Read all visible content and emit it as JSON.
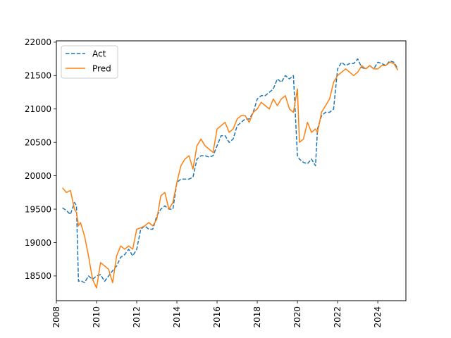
{
  "chart_data": {
    "type": "line",
    "title": "",
    "xlabel": "",
    "ylabel": "",
    "xlim": [
      2008,
      2025.4
    ],
    "ylim": [
      18130,
      22020
    ],
    "grid": false,
    "legend_placement": "top-left",
    "x_ticks": [
      2008,
      2010,
      2012,
      2014,
      2016,
      2018,
      2020,
      2022,
      2024
    ],
    "x_tick_labels": [
      "2008",
      "2010",
      "2012",
      "2014",
      "2016",
      "2018",
      "2020",
      "2022",
      "2024"
    ],
    "y_ticks": [
      18500,
      19000,
      19500,
      20000,
      20500,
      21000,
      21500,
      22000
    ],
    "y_tick_labels": [
      "18500",
      "19000",
      "19500",
      "20000",
      "20500",
      "21000",
      "21500",
      "22000"
    ],
    "series": [
      {
        "name": "Act",
        "color": "#1f77b4",
        "style": "dashed",
        "x": [
          2008.3,
          2008.5,
          2008.7,
          2008.9,
          2009.0,
          2009.1,
          2009.2,
          2009.4,
          2009.6,
          2009.8,
          2010.0,
          2010.2,
          2010.4,
          2010.6,
          2010.8,
          2011.0,
          2011.2,
          2011.4,
          2011.6,
          2011.8,
          2012.0,
          2012.2,
          2012.4,
          2012.6,
          2012.8,
          2013.0,
          2013.2,
          2013.4,
          2013.6,
          2013.8,
          2014.0,
          2014.2,
          2014.4,
          2014.6,
          2014.8,
          2015.0,
          2015.2,
          2015.4,
          2015.6,
          2015.8,
          2016.0,
          2016.2,
          2016.4,
          2016.6,
          2016.8,
          2017.0,
          2017.2,
          2017.4,
          2017.6,
          2017.8,
          2018.0,
          2018.2,
          2018.4,
          2018.6,
          2018.8,
          2019.0,
          2019.2,
          2019.4,
          2019.6,
          2019.8,
          2020.0,
          2020.1,
          2020.3,
          2020.5,
          2020.7,
          2020.9,
          2021.0,
          2021.2,
          2021.4,
          2021.6,
          2021.8,
          2022.0,
          2022.2,
          2022.4,
          2022.6,
          2022.8,
          2023.0,
          2023.2,
          2023.4,
          2023.6,
          2023.8,
          2024.0,
          2024.2,
          2024.4,
          2024.6,
          2024.8,
          2025.0
        ],
        "values": [
          19520,
          19480,
          19420,
          19600,
          19550,
          18420,
          18430,
          18400,
          18500,
          18450,
          18500,
          18520,
          18420,
          18500,
          18580,
          18650,
          18780,
          18820,
          18900,
          18800,
          18900,
          19200,
          19250,
          19200,
          19200,
          19400,
          19500,
          19550,
          19500,
          19500,
          19900,
          19950,
          19950,
          19950,
          19980,
          20250,
          20300,
          20300,
          20280,
          20300,
          20450,
          20600,
          20600,
          20500,
          20550,
          20750,
          20800,
          20850,
          20850,
          20950,
          21150,
          21200,
          21200,
          21250,
          21300,
          21450,
          21400,
          21500,
          21450,
          21500,
          20300,
          20250,
          20200,
          20180,
          20250,
          20150,
          20700,
          20900,
          20950,
          20950,
          21000,
          21600,
          21700,
          21650,
          21680,
          21680,
          21750,
          21620,
          21600,
          21650,
          21600,
          21700,
          21680,
          21650,
          21720,
          21700,
          21600
        ]
      },
      {
        "name": "Pred",
        "color": "#ff7f0e",
        "style": "solid",
        "x": [
          2008.3,
          2008.5,
          2008.7,
          2008.9,
          2009.0,
          2009.1,
          2009.2,
          2009.4,
          2009.6,
          2009.8,
          2010.0,
          2010.2,
          2010.4,
          2010.6,
          2010.8,
          2011.0,
          2011.2,
          2011.4,
          2011.6,
          2011.8,
          2012.0,
          2012.2,
          2012.4,
          2012.6,
          2012.8,
          2013.0,
          2013.2,
          2013.4,
          2013.6,
          2013.8,
          2014.0,
          2014.2,
          2014.4,
          2014.6,
          2014.8,
          2015.0,
          2015.2,
          2015.4,
          2015.6,
          2015.8,
          2016.0,
          2016.2,
          2016.4,
          2016.6,
          2016.8,
          2017.0,
          2017.2,
          2017.4,
          2017.6,
          2017.8,
          2018.0,
          2018.2,
          2018.4,
          2018.6,
          2018.8,
          2019.0,
          2019.2,
          2019.4,
          2019.6,
          2019.8,
          2020.0,
          2020.1,
          2020.3,
          2020.5,
          2020.7,
          2020.9,
          2021.0,
          2021.2,
          2021.4,
          2021.6,
          2021.8,
          2022.0,
          2022.2,
          2022.4,
          2022.6,
          2022.8,
          2023.0,
          2023.2,
          2023.4,
          2023.6,
          2023.8,
          2024.0,
          2024.2,
          2024.4,
          2024.6,
          2024.8,
          2025.0
        ],
        "values": [
          19820,
          19750,
          19780,
          19500,
          19450,
          19250,
          19300,
          19100,
          18800,
          18450,
          18320,
          18700,
          18650,
          18600,
          18400,
          18800,
          18950,
          18900,
          18950,
          18900,
          19200,
          19220,
          19250,
          19300,
          19250,
          19350,
          19700,
          19750,
          19500,
          19600,
          19900,
          20150,
          20250,
          20300,
          20100,
          20450,
          20550,
          20450,
          20400,
          20350,
          20700,
          20750,
          20800,
          20650,
          20700,
          20850,
          20900,
          20900,
          20800,
          20950,
          21000,
          21100,
          21050,
          21000,
          21150,
          21050,
          21150,
          21200,
          21000,
          20950,
          21300,
          20500,
          20550,
          20800,
          20650,
          20700,
          20650,
          20950,
          21050,
          21150,
          21400,
          21500,
          21550,
          21600,
          21550,
          21500,
          21550,
          21650,
          21600,
          21650,
          21600,
          21600,
          21650,
          21650,
          21700,
          21680,
          21580
        ]
      }
    ]
  }
}
